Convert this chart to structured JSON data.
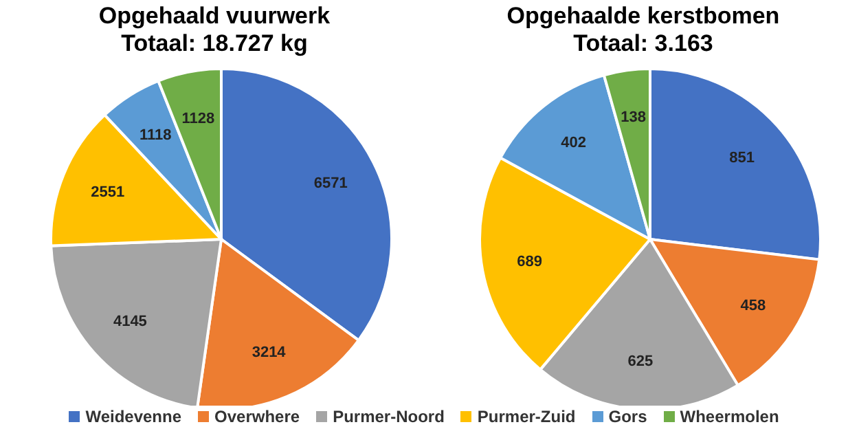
{
  "chart_data": [
    {
      "type": "pie",
      "title": "Opgehaald vuurwerk",
      "subtitle": "Totaal: 18.727 kg",
      "categories": [
        "Weidevenne",
        "Overwhere",
        "Purmer-Noord",
        "Purmer-Zuid",
        "Gors",
        "Wheermolen"
      ],
      "values": [
        6571,
        3214,
        4145,
        2551,
        1118,
        1128
      ],
      "colors": [
        "#4472c4",
        "#ed7d31",
        "#a5a5a5",
        "#ffc000",
        "#5b9bd5",
        "#70ad47"
      ],
      "data_labels": true,
      "legend": "bottom"
    },
    {
      "type": "pie",
      "title": "Opgehaalde kerstbomen",
      "subtitle": "Totaal: 3.163",
      "categories": [
        null,
        null,
        null,
        null,
        null,
        null
      ],
      "values": [
        851,
        458,
        625,
        689,
        402,
        138
      ],
      "colors": [
        "#4472c4",
        "#ed7d31",
        "#a5a5a5",
        "#ffc000",
        "#5b9bd5",
        "#70ad47"
      ],
      "data_labels": true
    }
  ]
}
